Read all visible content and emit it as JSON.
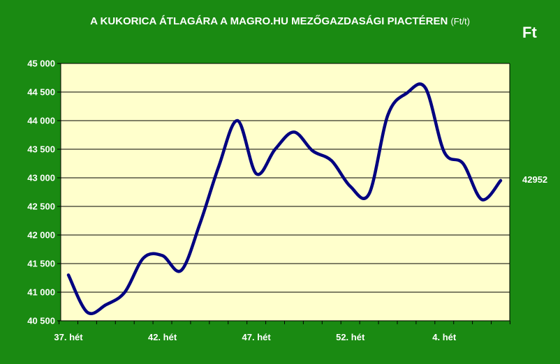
{
  "chart_data": {
    "type": "line",
    "title": "A KUKORICA ÁTLAGÁRA A MAGRO.HU MEZŐGAZDASÁGI PIACTÉREN",
    "title_unit": "(Ft/t)",
    "ylabel": "Ft",
    "ylim": [
      40500,
      45000
    ],
    "yticks": [
      "40 500",
      "41 000",
      "41 500",
      "42 000",
      "42 500",
      "43 000",
      "43 500",
      "44 000",
      "44 500",
      "45 000"
    ],
    "ytick_values": [
      40500,
      41000,
      41500,
      42000,
      42500,
      43000,
      43500,
      44000,
      44500,
      45000
    ],
    "xtick_labels": [
      "37. hét",
      "42. hét",
      "47. hét",
      "52. hét",
      "4. hét"
    ],
    "xtick_index": [
      0,
      5,
      10,
      15,
      20
    ],
    "grid": true,
    "series": [
      {
        "color": "#000080",
        "values": [
          41300,
          40650,
          40780,
          41000,
          41600,
          41640,
          41380,
          42200,
          43200,
          44000,
          43070,
          43500,
          43800,
          43470,
          43300,
          42850,
          42720,
          44100,
          44480,
          44570,
          43450,
          43250,
          42620,
          42952
        ]
      }
    ],
    "last_value_label": "42952",
    "plot_background": "#ffffcc",
    "page_background": "#1a8a12"
  }
}
